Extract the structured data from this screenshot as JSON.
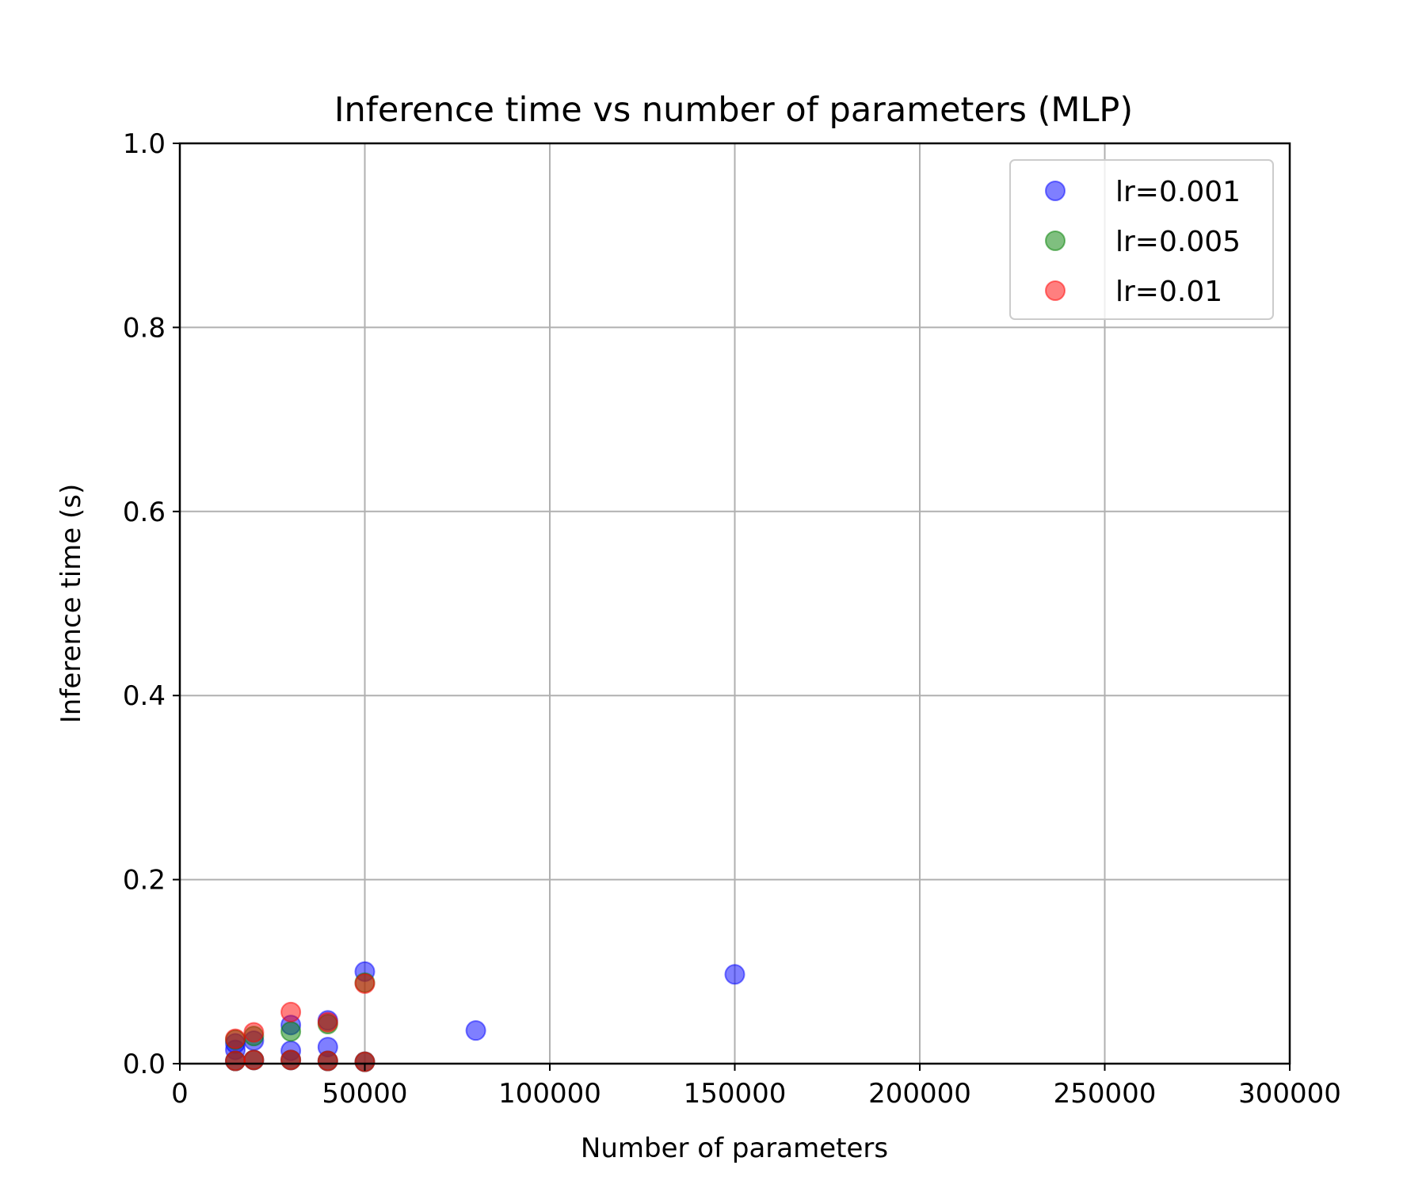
{
  "chart_data": {
    "type": "scatter",
    "title": "Inference time vs number of parameters (MLP)",
    "xlabel": "Number of parameters",
    "ylabel": "Inference time (s)",
    "xlim": [
      0,
      300000
    ],
    "ylim": [
      0,
      1.0
    ],
    "xticks": [
      "0",
      "50000",
      "100000",
      "150000",
      "200000",
      "250000",
      "300000"
    ],
    "yticks": [
      "0.0",
      "0.2",
      "0.4",
      "0.6",
      "0.8",
      "1.0"
    ],
    "grid": true,
    "legend_position": "top-right",
    "series": [
      {
        "name": "lr=0.001",
        "color": "#0000ff",
        "points": [
          {
            "x": 15000,
            "y": 0.015
          },
          {
            "x": 15000,
            "y": 0.022
          },
          {
            "x": 15000,
            "y": 0.003
          },
          {
            "x": 20000,
            "y": 0.025
          },
          {
            "x": 20000,
            "y": 0.004
          },
          {
            "x": 30000,
            "y": 0.042
          },
          {
            "x": 30000,
            "y": 0.014
          },
          {
            "x": 30000,
            "y": 0.004
          },
          {
            "x": 40000,
            "y": 0.047
          },
          {
            "x": 40000,
            "y": 0.018
          },
          {
            "x": 40000,
            "y": 0.003
          },
          {
            "x": 50000,
            "y": 0.1
          },
          {
            "x": 50000,
            "y": 0.002
          },
          {
            "x": 80000,
            "y": 0.036
          },
          {
            "x": 150000,
            "y": 0.097
          }
        ]
      },
      {
        "name": "lr=0.005",
        "color": "#008000",
        "points": [
          {
            "x": 15000,
            "y": 0.026
          },
          {
            "x": 15000,
            "y": 0.003
          },
          {
            "x": 20000,
            "y": 0.03
          },
          {
            "x": 20000,
            "y": 0.004
          },
          {
            "x": 30000,
            "y": 0.035
          },
          {
            "x": 30000,
            "y": 0.004
          },
          {
            "x": 40000,
            "y": 0.043
          },
          {
            "x": 40000,
            "y": 0.003
          },
          {
            "x": 50000,
            "y": 0.088
          },
          {
            "x": 50000,
            "y": 0.002
          }
        ]
      },
      {
        "name": "lr=0.01",
        "color": "#ff0000",
        "points": [
          {
            "x": 15000,
            "y": 0.027
          },
          {
            "x": 15000,
            "y": 0.003
          },
          {
            "x": 20000,
            "y": 0.034
          },
          {
            "x": 20000,
            "y": 0.004
          },
          {
            "x": 30000,
            "y": 0.056
          },
          {
            "x": 30000,
            "y": 0.004
          },
          {
            "x": 40000,
            "y": 0.045
          },
          {
            "x": 40000,
            "y": 0.003
          },
          {
            "x": 50000,
            "y": 0.087
          },
          {
            "x": 50000,
            "y": 0.002
          }
        ]
      }
    ]
  }
}
